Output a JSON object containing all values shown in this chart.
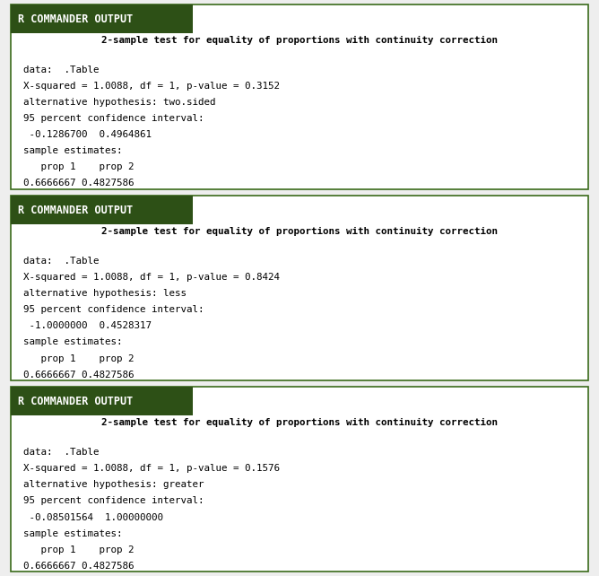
{
  "fig_width": 6.68,
  "fig_height": 6.42,
  "dpi": 100,
  "bg_color": "#eeeeee",
  "panel_bg": "#ffffff",
  "header_bg": "#2d5016",
  "header_text_color": "#ffffff",
  "header_label": "R COMMANDER OUTPUT",
  "border_color": "#3a6b1a",
  "panels": [
    {
      "title": "2-sample test for equality of proportions with continuity correction",
      "lines": [
        "data:  .Table",
        "X-squared = 1.0088, df = 1, p-value = 0.3152",
        "alternative hypothesis: two.sided",
        "95 percent confidence interval:",
        " -0.1286700  0.4964861",
        "sample estimates:",
        "   prop 1    prop 2",
        "0.6666667 0.4827586"
      ]
    },
    {
      "title": "2-sample test for equality of proportions with continuity correction",
      "lines": [
        "data:  .Table",
        "X-squared = 1.0088, df = 1, p-value = 0.8424",
        "alternative hypothesis: less",
        "95 percent confidence interval:",
        " -1.0000000  0.4528317",
        "sample estimates:",
        "   prop 1    prop 2",
        "0.6666667 0.4827586"
      ]
    },
    {
      "title": "2-sample test for equality of proportions with continuity correction",
      "lines": [
        "data:  .Table",
        "X-squared = 1.0088, df = 1, p-value = 0.1576",
        "alternative hypothesis: greater",
        "95 percent confidence interval:",
        " -0.08501564  1.00000000",
        "sample estimates:",
        "   prop 1    prop 2",
        "0.6666667 0.4827586"
      ]
    }
  ]
}
